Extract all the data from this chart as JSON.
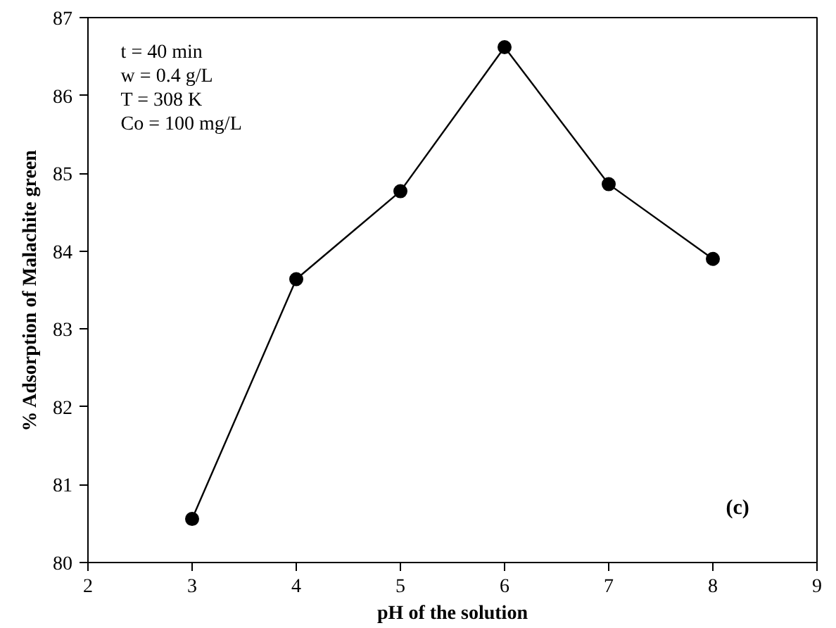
{
  "chart_data": {
    "type": "line",
    "xlabel": "pH of the solution",
    "ylabel": "% Adsorption of Malachite green",
    "x": [
      3,
      4,
      5,
      6,
      7,
      8
    ],
    "series": [
      {
        "color": "#000000",
        "values": [
          80.56,
          83.64,
          84.77,
          86.62,
          84.86,
          83.9
        ]
      }
    ],
    "xlim": [
      2,
      9
    ],
    "xticks": [
      2,
      3,
      4,
      5,
      6,
      7,
      8,
      9
    ],
    "ylim": [
      80,
      87
    ],
    "yticks": [
      80,
      81,
      82,
      83,
      84,
      85,
      86,
      87
    ],
    "grid": false,
    "marker": "circle",
    "line_style": "solid",
    "annotations": [
      "t = 40 min",
      "w = 0.4 g/L",
      "T = 308 K",
      "Co = 100 mg/L",
      "(c)"
    ]
  }
}
